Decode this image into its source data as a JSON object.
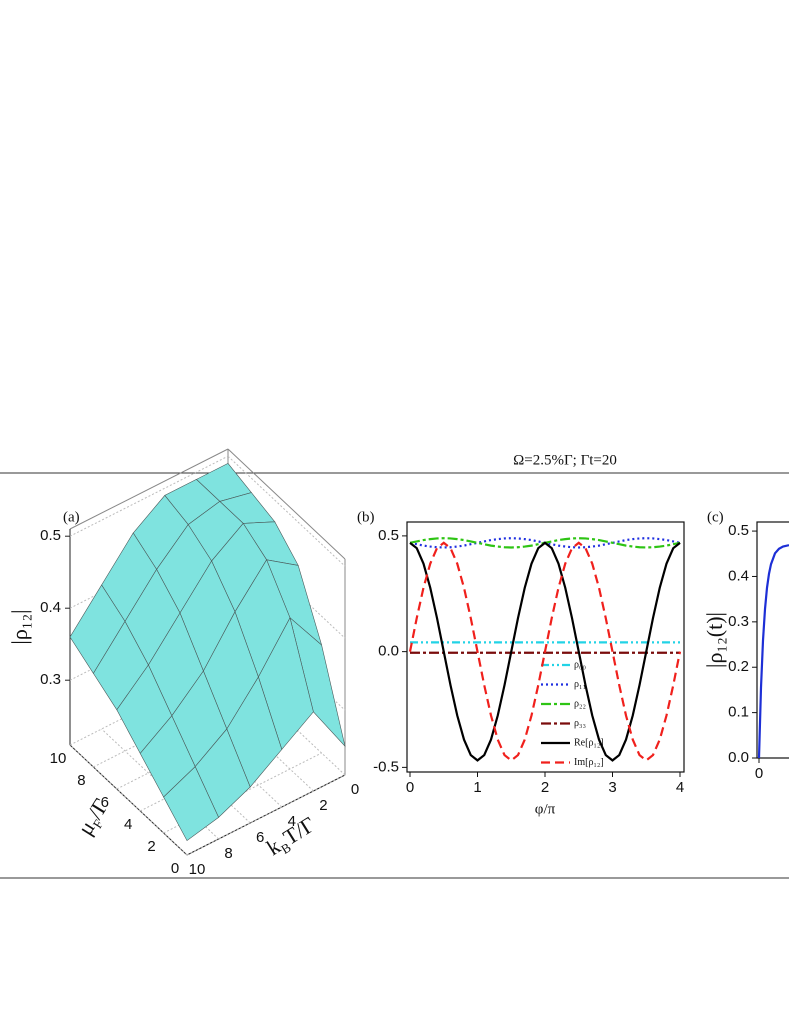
{
  "caption": "Ω=2.5%Γ; Γt=20",
  "chart_data": [
    {
      "type": "surface3d",
      "panel_label": "(a)",
      "zlabel": "|ρ₁₂|",
      "xlabel": [
        "μ",
        "F",
        "/Γ"
      ],
      "ylabel": [
        "k",
        "B",
        "T/Γ"
      ],
      "color": "#7fe3df",
      "mu": [
        0,
        2,
        4,
        6,
        8,
        10
      ],
      "T": [
        0,
        2,
        4,
        6,
        8,
        10
      ],
      "z": [
        [
          0.25,
          0.32,
          0.29,
          0.26,
          0.24,
          0.23
        ],
        [
          0.36,
          0.42,
          0.36,
          0.31,
          0.28,
          0.26
        ],
        [
          0.44,
          0.47,
          0.42,
          0.36,
          0.32,
          0.29
        ],
        [
          0.47,
          0.49,
          0.46,
          0.41,
          0.36,
          0.32
        ],
        [
          0.48,
          0.49,
          0.48,
          0.44,
          0.39,
          0.34
        ],
        [
          0.49,
          0.49,
          0.49,
          0.46,
          0.41,
          0.36
        ]
      ],
      "xlim": [
        0,
        10
      ],
      "xticks": [
        0,
        2,
        4,
        6,
        8,
        10
      ],
      "ylim": [
        0,
        10
      ],
      "yticks": [
        0,
        2,
        4,
        6,
        8,
        10
      ],
      "zlim": [
        0.21,
        0.51
      ],
      "zticks": [
        0.3,
        0.4,
        0.5
      ],
      "grid": true
    },
    {
      "type": "line",
      "panel_label": "(b)",
      "xlabel": "φ/π",
      "x": [
        0,
        0.1,
        0.2,
        0.3,
        0.4,
        0.5,
        0.6,
        0.7,
        0.8,
        0.9,
        1,
        1.1,
        1.2,
        1.3,
        1.4,
        1.5,
        1.6,
        1.7,
        1.8,
        1.9,
        2,
        2.1,
        2.2,
        2.3,
        2.4,
        2.5,
        2.6,
        2.7,
        2.8,
        2.9,
        3,
        3.1,
        3.2,
        3.3,
        3.4,
        3.5,
        3.6,
        3.7,
        3.8,
        3.9,
        4
      ],
      "xlim": [
        0,
        4
      ],
      "xticks": [
        0,
        1,
        2,
        3,
        4
      ],
      "ylim": [
        -0.52,
        0.56
      ],
      "yticks": [
        -0.5,
        {
          "value": 0,
          "label": "0.0"
        },
        0.5
      ],
      "series": [
        {
          "name": "ρ₀₀",
          "color": "#22d3e6",
          "style": "dashdotdot",
          "values": [
            0.04,
            0.04,
            0.04,
            0.04,
            0.04,
            0.04,
            0.04,
            0.04,
            0.04,
            0.04,
            0.04,
            0.04,
            0.04,
            0.04,
            0.04,
            0.04,
            0.04,
            0.04,
            0.04,
            0.04,
            0.04,
            0.04,
            0.04,
            0.04,
            0.04,
            0.04,
            0.04,
            0.04,
            0.04,
            0.04,
            0.04,
            0.04,
            0.04,
            0.04,
            0.04,
            0.04,
            0.04,
            0.04,
            0.04,
            0.04,
            0.04
          ]
        },
        {
          "name": "ρ₁₁",
          "color": "#1f2fe0",
          "style": "dotted",
          "values": [
            0.47,
            0.464,
            0.458,
            0.454,
            0.451,
            0.45,
            0.451,
            0.454,
            0.458,
            0.464,
            0.47,
            0.476,
            0.482,
            0.486,
            0.489,
            0.49,
            0.489,
            0.486,
            0.482,
            0.476,
            0.47,
            0.464,
            0.458,
            0.454,
            0.451,
            0.45,
            0.451,
            0.454,
            0.458,
            0.464,
            0.47,
            0.476,
            0.482,
            0.486,
            0.489,
            0.49,
            0.489,
            0.486,
            0.482,
            0.476,
            0.47
          ]
        },
        {
          "name": "ρ₂₂",
          "color": "#2ec414",
          "style": "dashdot",
          "values": [
            0.47,
            0.476,
            0.482,
            0.486,
            0.489,
            0.49,
            0.489,
            0.486,
            0.482,
            0.476,
            0.47,
            0.464,
            0.458,
            0.454,
            0.451,
            0.45,
            0.451,
            0.454,
            0.458,
            0.464,
            0.47,
            0.476,
            0.482,
            0.486,
            0.489,
            0.49,
            0.489,
            0.486,
            0.482,
            0.476,
            0.47,
            0.464,
            0.458,
            0.454,
            0.451,
            0.45,
            0.451,
            0.454,
            0.458,
            0.464,
            0.47
          ]
        },
        {
          "name": "ρ₃₃",
          "color": "#7a0c0c",
          "style": "dashdot",
          "values": [
            -0.005,
            -0.005,
            -0.005,
            -0.005,
            -0.005,
            -0.005,
            -0.005,
            -0.005,
            -0.005,
            -0.005,
            -0.005,
            -0.005,
            -0.005,
            -0.005,
            -0.005,
            -0.005,
            -0.005,
            -0.005,
            -0.005,
            -0.005,
            -0.005,
            -0.005,
            -0.005,
            -0.005,
            -0.005,
            -0.005,
            -0.005,
            -0.005,
            -0.005,
            -0.005,
            -0.005,
            -0.005,
            -0.005,
            -0.005,
            -0.005,
            -0.005,
            -0.005,
            -0.005,
            -0.005,
            -0.005,
            -0.005
          ]
        },
        {
          "name": "Re[ρ₁₂]",
          "color": "#000000",
          "style": "solid",
          "values": [
            0.47,
            0.447,
            0.38,
            0.276,
            0.145,
            0,
            -0.145,
            -0.276,
            -0.38,
            -0.447,
            -0.47,
            -0.447,
            -0.38,
            -0.276,
            -0.145,
            0,
            0.145,
            0.276,
            0.38,
            0.447,
            0.47,
            0.447,
            0.38,
            0.276,
            0.145,
            0,
            -0.145,
            -0.276,
            -0.38,
            -0.447,
            -0.47,
            -0.447,
            -0.38,
            -0.276,
            -0.145,
            0,
            0.145,
            0.276,
            0.38,
            0.447,
            0.47
          ]
        },
        {
          "name": "Im[ρ₁₂]",
          "color": "#f0201c",
          "style": "dashed",
          "values": [
            0,
            0.145,
            0.276,
            0.38,
            0.447,
            0.47,
            0.447,
            0.38,
            0.276,
            0.145,
            0,
            -0.145,
            -0.276,
            -0.38,
            -0.447,
            -0.47,
            -0.447,
            -0.38,
            -0.276,
            -0.145,
            0,
            0.145,
            0.276,
            0.38,
            0.447,
            0.47,
            0.447,
            0.38,
            0.276,
            0.145,
            0,
            -0.145,
            -0.276,
            -0.38,
            -0.447,
            -0.47,
            -0.447,
            -0.38,
            -0.276,
            -0.145,
            0
          ]
        }
      ]
    },
    {
      "type": "line",
      "panel_label": "(c)",
      "ylabel": "|ρ₁₂(t)|",
      "x": [
        0,
        0.1,
        0.2,
        0.3,
        0.4,
        0.5,
        0.6,
        0.8,
        1.0,
        1.2,
        1.5
      ],
      "xlim": [
        0,
        20
      ],
      "xticks": [
        0
      ],
      "ylim": [
        0,
        0.52
      ],
      "yticks": [
        {
          "value": 0,
          "label": "0.0"
        },
        0.1,
        0.2,
        0.3,
        0.4,
        0.5
      ],
      "series": [
        {
          "color": "#1d2fd6",
          "style": "solid",
          "values": [
            0,
            0.155,
            0.259,
            0.328,
            0.375,
            0.406,
            0.427,
            0.451,
            0.461,
            0.466,
            0.469
          ]
        }
      ]
    }
  ]
}
